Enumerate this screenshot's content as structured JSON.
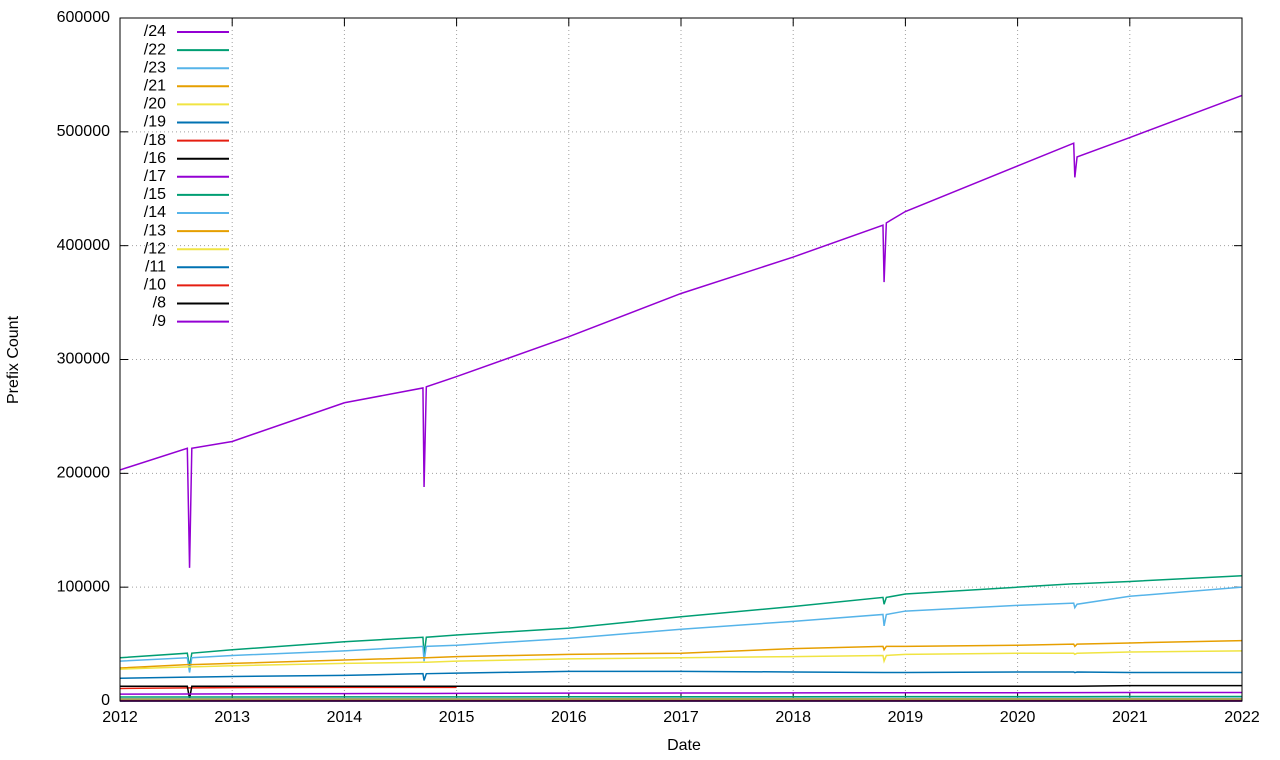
{
  "chart_data": {
    "type": "line",
    "x_label": "Date",
    "y_label": "Prefix Count",
    "x": [
      2012,
      2012.6,
      2012.62,
      2012.64,
      2013,
      2014,
      2014.7,
      2014.71,
      2014.73,
      2015,
      2016,
      2017,
      2018,
      2018.8,
      2018.81,
      2018.83,
      2019,
      2020,
      2020.5,
      2020.51,
      2020.53,
      2021,
      2022
    ],
    "xlim": [
      2012,
      2022
    ],
    "xticks": [
      2012,
      2013,
      2014,
      2015,
      2016,
      2017,
      2018,
      2019,
      2020,
      2021,
      2022
    ],
    "ylim": [
      0,
      600000
    ],
    "yticks": [
      0,
      100000,
      200000,
      300000,
      400000,
      500000,
      600000
    ],
    "grid": true,
    "legend": "upper-left",
    "series": [
      {
        "name": "/24",
        "color": "#9400d3",
        "values": [
          203000,
          222000,
          117000,
          222000,
          228000,
          262000,
          275000,
          188000,
          276000,
          285000,
          320000,
          358000,
          390000,
          418000,
          368000,
          420000,
          430000,
          470000,
          490000,
          460000,
          478000,
          495000,
          532000
        ]
      },
      {
        "name": "/22",
        "color": "#009e73",
        "values": [
          38000,
          42000,
          30000,
          42000,
          45000,
          52000,
          56000,
          40000,
          56000,
          58000,
          64000,
          74000,
          83000,
          91000,
          85000,
          91000,
          94000,
          100000,
          103000,
          103000,
          103000,
          105000,
          110000
        ]
      },
      {
        "name": "/23",
        "color": "#56b4e9",
        "values": [
          35000,
          38000,
          25000,
          38000,
          40000,
          44000,
          48000,
          35000,
          48000,
          49000,
          55000,
          63000,
          70000,
          76000,
          66000,
          76000,
          79000,
          84000,
          86000,
          82000,
          85000,
          92000,
          100000
        ]
      },
      {
        "name": "/21",
        "color": "#e69f00",
        "values": [
          29000,
          32000,
          32000,
          32000,
          33000,
          36000,
          38000,
          38000,
          38000,
          39000,
          41000,
          42000,
          46000,
          48000,
          45000,
          48000,
          48000,
          49000,
          50000,
          48000,
          50000,
          51000,
          53000
        ]
      },
      {
        "name": "/20",
        "color": "#f0e442",
        "values": [
          28000,
          30000,
          30000,
          30000,
          31000,
          33000,
          34000,
          34000,
          34000,
          35000,
          37000,
          38000,
          39000,
          40000,
          35000,
          40000,
          41000,
          42000,
          42000,
          41000,
          42000,
          43000,
          44000
        ]
      },
      {
        "name": "/19",
        "color": "#0072b2",
        "values": [
          20000,
          21000,
          21000,
          21000,
          21500,
          22500,
          24000,
          18000,
          24000,
          24500,
          26000,
          26000,
          25500,
          25000,
          25000,
          25000,
          25000,
          25500,
          25500,
          25000,
          25500,
          25000,
          25000
        ]
      },
      {
        "name": "/18",
        "color": "#e51e10",
        "values": [
          11000,
          11500,
          11500,
          11500,
          11800,
          12000,
          12000,
          12000,
          12000,
          12000,
          null,
          null,
          null,
          null,
          null,
          null,
          null,
          null,
          null,
          null,
          null,
          null,
          null
        ]
      },
      {
        "name": "/16",
        "color": "#000000",
        "values": [
          13000,
          13000,
          2000,
          13000,
          13000,
          13000,
          13000,
          13000,
          13000,
          13000,
          13000,
          13000,
          13000,
          13000,
          13000,
          13000,
          13000,
          13000,
          13000,
          13000,
          13000,
          13500,
          13500
        ]
      },
      {
        "name": "/17",
        "color": "#9400d3",
        "values": [
          6000,
          6200,
          6200,
          6200,
          6300,
          6500,
          6600,
          6600,
          6600,
          6700,
          6900,
          7000,
          7100,
          7200,
          7200,
          7200,
          7200,
          7300,
          7400,
          7400,
          7400,
          7500,
          7500
        ]
      },
      {
        "name": "/15",
        "color": "#009e73",
        "values": [
          3500,
          3500,
          3500,
          3500,
          3500,
          3600,
          3600,
          3600,
          3600,
          3600,
          3700,
          3700,
          3700,
          3800,
          3800,
          3800,
          3800,
          3800,
          3800,
          3800,
          3800,
          3900,
          3900
        ]
      },
      {
        "name": "/14",
        "color": "#56b4e9",
        "values": [
          2000,
          2000,
          2000,
          2000,
          2000,
          2100,
          2100,
          2100,
          2100,
          2100,
          2100,
          2200,
          2200,
          2200,
          2200,
          2200,
          2200,
          2300,
          2300,
          2300,
          2300,
          2300,
          2300
        ]
      },
      {
        "name": "/13",
        "color": "#e69f00",
        "values": [
          1500,
          1500,
          1500,
          1500,
          1500,
          1500,
          1500,
          1500,
          1500,
          1500,
          1600,
          1600,
          1600,
          1600,
          1600,
          1600,
          1600,
          1600,
          1600,
          1600,
          1600,
          1600,
          1600
        ]
      },
      {
        "name": "/12",
        "color": "#f0e442",
        "values": [
          1000,
          1000,
          1000,
          1000,
          1000,
          1000,
          1000,
          1000,
          1000,
          1000,
          1000,
          1000,
          1000,
          1000,
          1000,
          1000,
          1000,
          1000,
          1000,
          1000,
          1000,
          1000,
          1000
        ]
      },
      {
        "name": "/11",
        "color": "#0072b2",
        "values": [
          500,
          500,
          500,
          500,
          500,
          500,
          500,
          500,
          500,
          500,
          500,
          500,
          500,
          500,
          500,
          500,
          500,
          500,
          500,
          500,
          500,
          500,
          500
        ]
      },
      {
        "name": "/10",
        "color": "#e51e10",
        "values": [
          300,
          300,
          300,
          300,
          300,
          300,
          300,
          300,
          300,
          300,
          300,
          300,
          300,
          300,
          300,
          300,
          300,
          300,
          300,
          300,
          300,
          300,
          300
        ]
      },
      {
        "name": "/8",
        "color": "#000000",
        "values": [
          16,
          16,
          16,
          16,
          16,
          16,
          16,
          16,
          16,
          16,
          16,
          16,
          16,
          16,
          16,
          16,
          16,
          16,
          16,
          16,
          16,
          16,
          16
        ]
      },
      {
        "name": "/9",
        "color": "#9400d3",
        "values": [
          12,
          12,
          12,
          12,
          12,
          12,
          12,
          12,
          12,
          12,
          12,
          12,
          12,
          12,
          12,
          12,
          12,
          12,
          12,
          12,
          12,
          12,
          12
        ]
      }
    ]
  }
}
